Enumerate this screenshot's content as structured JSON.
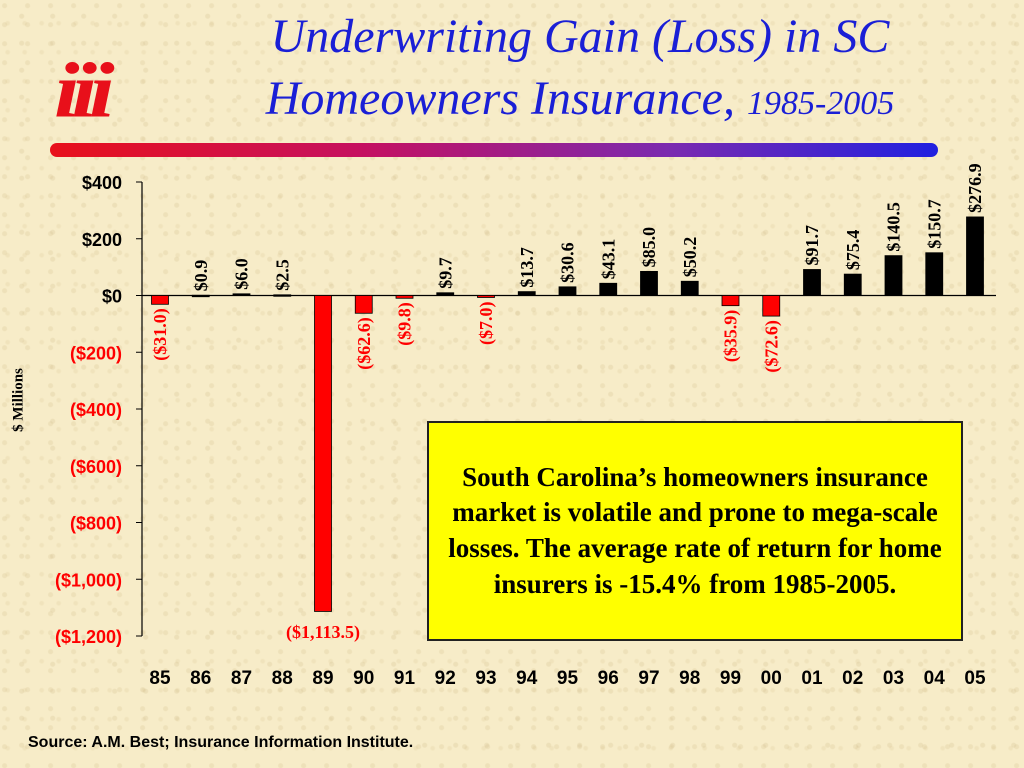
{
  "logo_text": "iii",
  "title": {
    "line1": "Underwriting Gain (Loss) in SC",
    "line2": "Homeowners Insurance,",
    "years": "1985-2005"
  },
  "chart_data": {
    "type": "bar",
    "categories": [
      "85",
      "86",
      "87",
      "88",
      "89",
      "90",
      "91",
      "92",
      "93",
      "94",
      "95",
      "96",
      "97",
      "98",
      "99",
      "00",
      "01",
      "02",
      "03",
      "04",
      "05"
    ],
    "values": [
      -31.0,
      0.9,
      6.0,
      2.5,
      -1113.5,
      -62.6,
      -9.8,
      9.7,
      -7.0,
      13.7,
      30.6,
      43.1,
      85.0,
      50.2,
      -35.9,
      -72.6,
      91.7,
      75.4,
      140.5,
      150.7,
      276.9
    ],
    "data_labels": [
      "($31.0)",
      "$0.9",
      "$6.0",
      "$2.5",
      "($1,113.5)",
      "($62.6)",
      "($9.8)",
      "$9.7",
      "($7.0)",
      "$13.7",
      "$30.6",
      "$43.1",
      "$85.0",
      "$50.2",
      "($35.9)",
      "($72.6)",
      "$91.7",
      "$75.4",
      "$140.5",
      "$150.7",
      "$276.9"
    ],
    "ylim": [
      -1200,
      400
    ],
    "yticks": [
      400,
      200,
      0,
      -200,
      -400,
      -600,
      -800,
      -1000,
      -1200
    ],
    "ytick_labels": [
      "$400",
      "$200",
      "$0",
      "($200)",
      "($400)",
      "($600)",
      "($800)",
      "($1,000)",
      "($1,200)"
    ],
    "ylabel": "$ Millions",
    "xlabel": "",
    "colors": {
      "positive": "#000000",
      "negative": "#ff0000"
    },
    "grid": false
  },
  "callout": "South Carolina’s homeowners insurance market is volatile and prone to mega-scale losses.  The average rate of return for home insurers is -15.4% from 1985-2005.",
  "source": "Source: A.M. Best; Insurance Information Institute."
}
